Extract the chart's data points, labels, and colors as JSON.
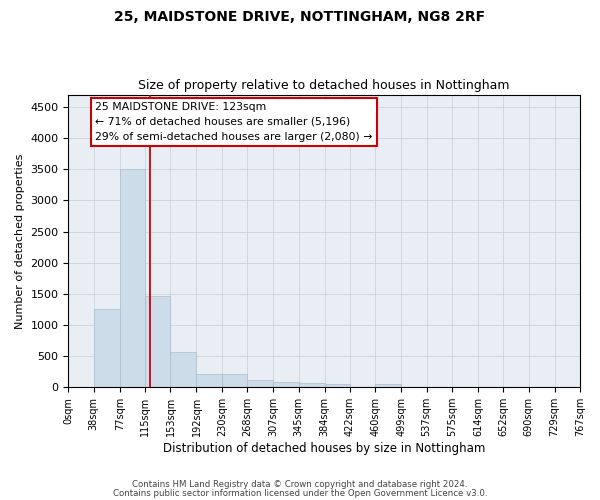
{
  "title": "25, MAIDSTONE DRIVE, NOTTINGHAM, NG8 2RF",
  "subtitle": "Size of property relative to detached houses in Nottingham",
  "xlabel": "Distribution of detached houses by size in Nottingham",
  "ylabel": "Number of detached properties",
  "bin_edges": [
    0,
    38,
    77,
    115,
    153,
    192,
    230,
    268,
    307,
    345,
    384,
    422,
    460,
    499,
    537,
    575,
    614,
    652,
    690,
    729,
    767
  ],
  "bar_heights": [
    5,
    1260,
    3500,
    1460,
    560,
    220,
    220,
    110,
    90,
    60,
    45,
    0,
    50,
    0,
    0,
    0,
    0,
    0,
    0,
    0
  ],
  "bar_color": "#ccdce8",
  "bar_edge_color": "#aabccc",
  "vline_x": 123,
  "vline_color": "#cc0000",
  "ylim": [
    0,
    4700
  ],
  "yticks": [
    0,
    500,
    1000,
    1500,
    2000,
    2500,
    3000,
    3500,
    4000,
    4500
  ],
  "annotation_line1": "25 MAIDSTONE DRIVE: 123sqm",
  "annotation_line2": "← 71% of detached houses are smaller (5,196)",
  "annotation_line3": "29% of semi-detached houses are larger (2,080) →",
  "footer_line1": "Contains HM Land Registry data © Crown copyright and database right 2024.",
  "footer_line2": "Contains public sector information licensed under the Open Government Licence v3.0.",
  "background_color": "#ffffff",
  "plot_bg_color": "#e8eef4",
  "grid_color": "#c8d4dc",
  "tick_labels": [
    "0sqm",
    "38sqm",
    "77sqm",
    "115sqm",
    "153sqm",
    "192sqm",
    "230sqm",
    "268sqm",
    "307sqm",
    "345sqm",
    "384sqm",
    "422sqm",
    "460sqm",
    "499sqm",
    "537sqm",
    "575sqm",
    "614sqm",
    "652sqm",
    "690sqm",
    "729sqm",
    "767sqm"
  ]
}
